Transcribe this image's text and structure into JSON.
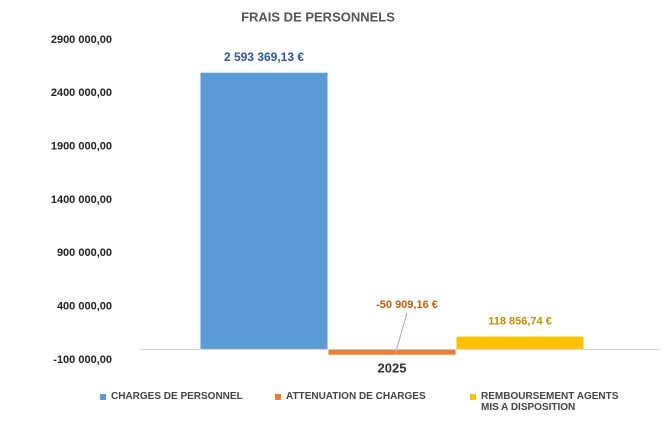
{
  "chart_data": {
    "type": "bar",
    "title": "FRAIS DE PERSONNELS",
    "categories": [
      "2025"
    ],
    "series": [
      {
        "name": "CHARGES DE PERSONNEL",
        "color": "#5b9bd5",
        "values": [
          2593369.13
        ],
        "value_labels": [
          "2 593 369,13 €"
        ]
      },
      {
        "name": "ATTENUATION DE CHARGES",
        "color": "#ed7d31",
        "values": [
          -50909.16
        ],
        "value_labels": [
          "-50 909,16 €"
        ]
      },
      {
        "name": "REMBOURSEMENT AGENTS MIS A DISPOSITION",
        "color": "#ffc000",
        "values": [
          118856.74
        ],
        "value_labels": [
          "118 856,74 €"
        ]
      }
    ],
    "ylim": [
      -100000,
      2900000
    ],
    "yticks": [
      {
        "value": -100000,
        "label": "-100 000,00"
      },
      {
        "value": 400000,
        "label": "400 000,00"
      },
      {
        "value": 900000,
        "label": "900 000,00"
      },
      {
        "value": 1400000,
        "label": "1400 000,00"
      },
      {
        "value": 1900000,
        "label": "1900 000,00"
      },
      {
        "value": 2400000,
        "label": "2400 000,00"
      },
      {
        "value": 2900000,
        "label": "2900 000,00"
      }
    ],
    "grid": false,
    "legend": "bottom"
  }
}
